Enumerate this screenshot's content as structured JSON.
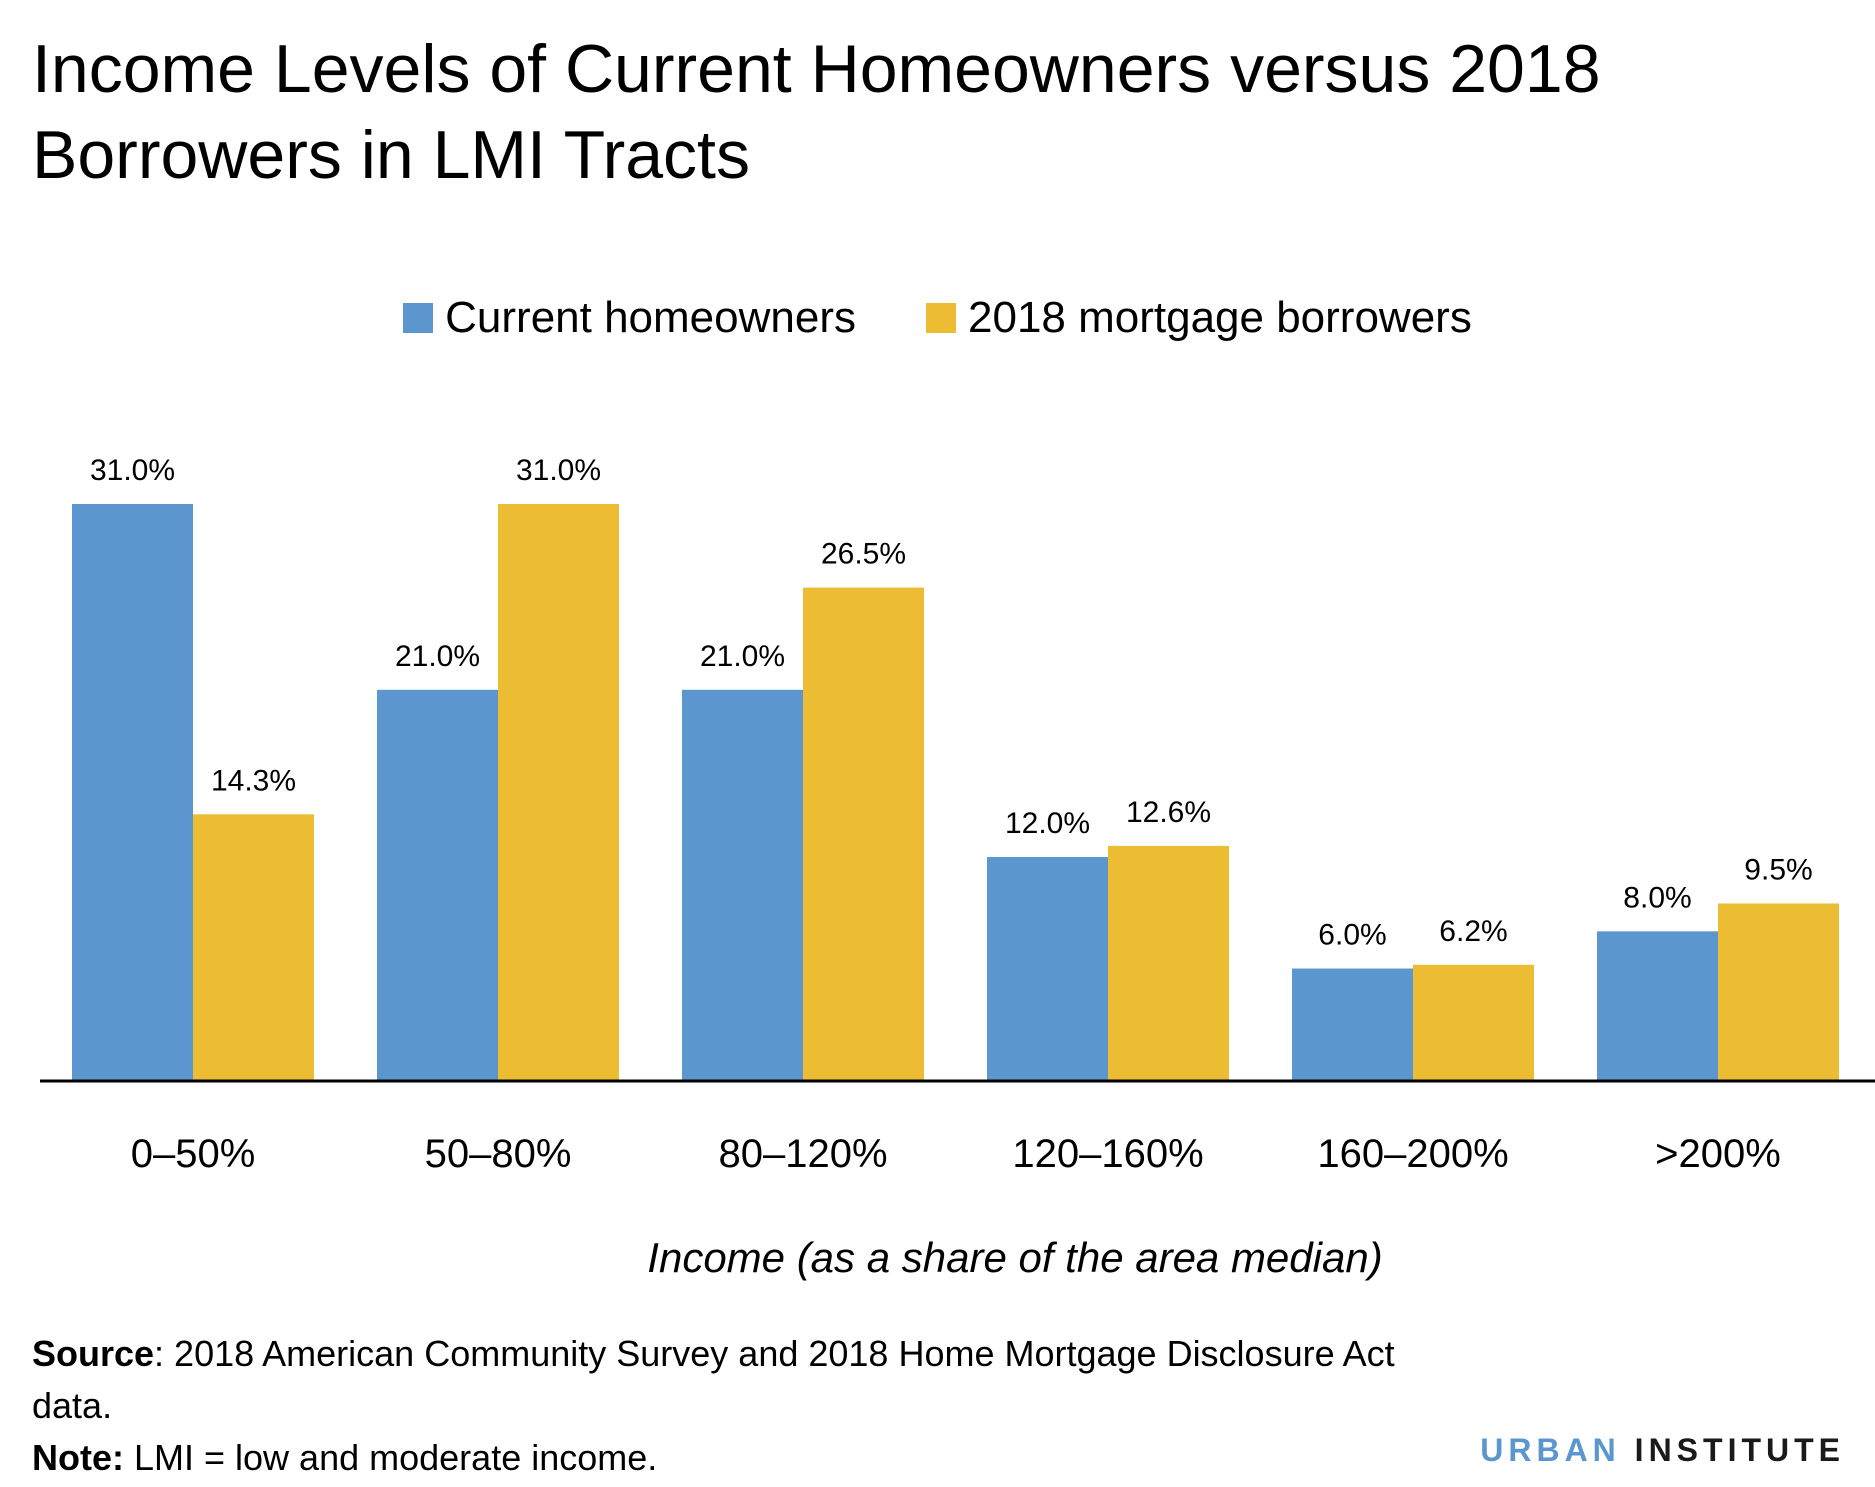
{
  "title": "Income Levels of Current Homeowners versus 2018 Borrowers in LMI Tracts",
  "legend": {
    "items": [
      {
        "label": "Current homeowners",
        "color": "#5b96cf"
      },
      {
        "label": "2018 mortgage borrowers",
        "color": "#ecbd33"
      }
    ]
  },
  "chart_data": {
    "type": "bar",
    "title": "Income Levels of Current Homeowners versus 2018 Borrowers in LMI Tracts",
    "xlabel": "Income (as a share of the area median)",
    "ylabel": "",
    "categories": [
      "0–50%",
      "50–80%",
      "80–120%",
      "120–160%",
      "160–200%",
      ">200%"
    ],
    "series": [
      {
        "name": "Current homeowners",
        "color": "#5b96cf",
        "values": [
          31.0,
          21.0,
          21.0,
          12.0,
          6.0,
          8.0
        ],
        "labels": [
          "31.0%",
          "21.0%",
          "21.0%",
          "12.0%",
          "6.0%",
          "8.0%"
        ]
      },
      {
        "name": "2018 mortgage borrowers",
        "color": "#ecbd33",
        "values": [
          14.3,
          31.0,
          26.5,
          12.6,
          6.2,
          9.5
        ],
        "labels": [
          "14.3%",
          "31.0%",
          "26.5%",
          "12.6%",
          "6.2%",
          "9.5%"
        ]
      }
    ],
    "ylim": [
      0,
      31
    ],
    "grid": false,
    "legend_position": "top-center"
  },
  "footnote": {
    "source_label": "Source",
    "source_text": ": 2018 American Community Survey and 2018 Home Mortgage Disclosure Act data.",
    "note_label": "Note:",
    "note_text": " LMI = low and moderate income."
  },
  "brand": {
    "first": "URBAN",
    "second": "INSTITUTE"
  }
}
